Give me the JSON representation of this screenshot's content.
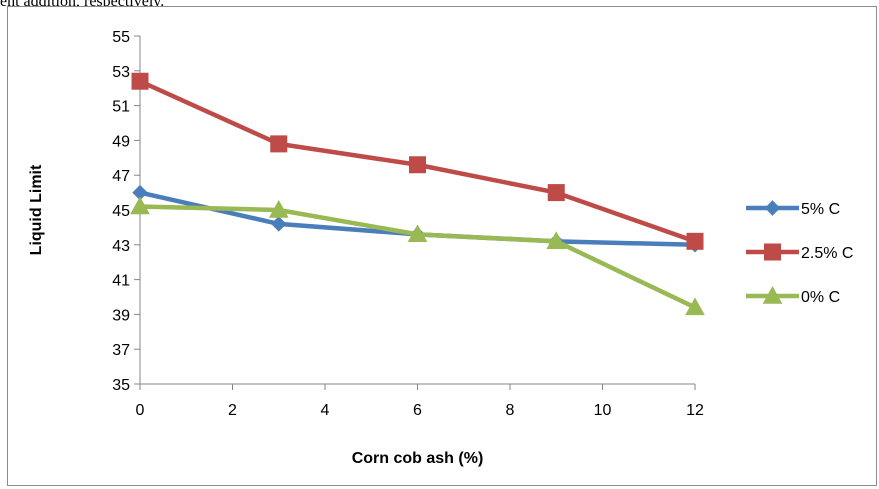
{
  "page": {
    "top_text": "ent addition, respectively."
  },
  "chart_data": {
    "type": "line",
    "title": "",
    "xlabel": "Corn cob ash (%)",
    "ylabel": "Liquid Limit",
    "xlim": [
      0,
      12
    ],
    "ylim": [
      35,
      55
    ],
    "xticks": [
      0,
      2,
      4,
      6,
      8,
      10,
      12
    ],
    "yticks": [
      35,
      37,
      39,
      41,
      43,
      45,
      47,
      49,
      51,
      53,
      55
    ],
    "grid": false,
    "legend_position": "right",
    "x": [
      0,
      3,
      6,
      9,
      12
    ],
    "series": [
      {
        "name": "5% C",
        "values": [
          46.0,
          44.2,
          43.6,
          43.2,
          43.0
        ],
        "color": "#4a7ebb",
        "marker": "diamond"
      },
      {
        "name": "2.5% C",
        "values": [
          52.4,
          48.8,
          47.6,
          46.0,
          43.2
        ],
        "color": "#be4b48",
        "marker": "square"
      },
      {
        "name": "0% C",
        "values": [
          45.2,
          45.0,
          43.6,
          43.2,
          39.4
        ],
        "color": "#98b954",
        "marker": "triangle"
      }
    ]
  }
}
